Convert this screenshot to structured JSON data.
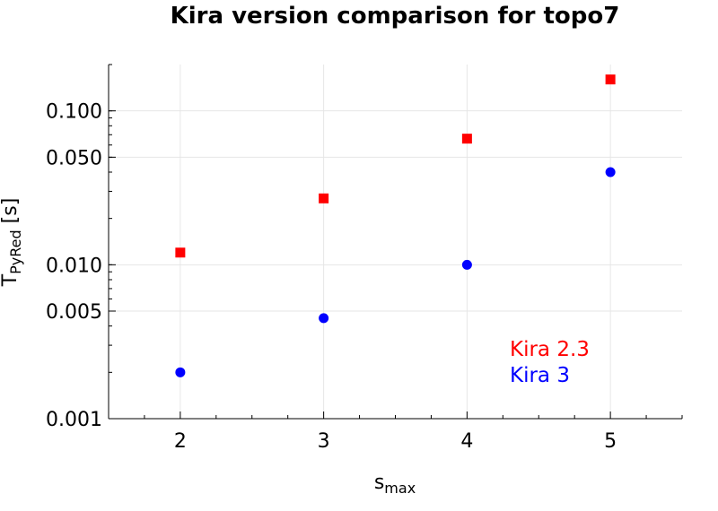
{
  "chart_data": {
    "type": "scatter",
    "title": "Kira version comparison for topo7",
    "xlabel": {
      "main": "s",
      "sub": "max"
    },
    "ylabel": {
      "main": "T",
      "sub": "PyRed",
      "suffix": " [s]"
    },
    "yscale": "log",
    "xlim": [
      1.5,
      5.5
    ],
    "ylim": [
      0.001,
      0.2
    ],
    "xticks": [
      2,
      3,
      4,
      5
    ],
    "xtick_labels": [
      "2",
      "3",
      "4",
      "5"
    ],
    "yticks": [
      0.001,
      0.005,
      0.01,
      0.05,
      0.1
    ],
    "ytick_labels": [
      "0.001",
      "0.005",
      "0.010",
      "0.050",
      "0.100"
    ],
    "grid": true,
    "legend_position": "bottom-right",
    "series": [
      {
        "name": "Kira 2.3",
        "color": "#ff0000",
        "marker": "square",
        "x": [
          2,
          3,
          4,
          5
        ],
        "y": [
          0.012,
          0.027,
          0.066,
          0.16
        ]
      },
      {
        "name": "Kira 3",
        "color": "#0000ff",
        "marker": "circle",
        "x": [
          2,
          3,
          4,
          5
        ],
        "y": [
          0.002,
          0.0045,
          0.01,
          0.04
        ]
      }
    ]
  }
}
